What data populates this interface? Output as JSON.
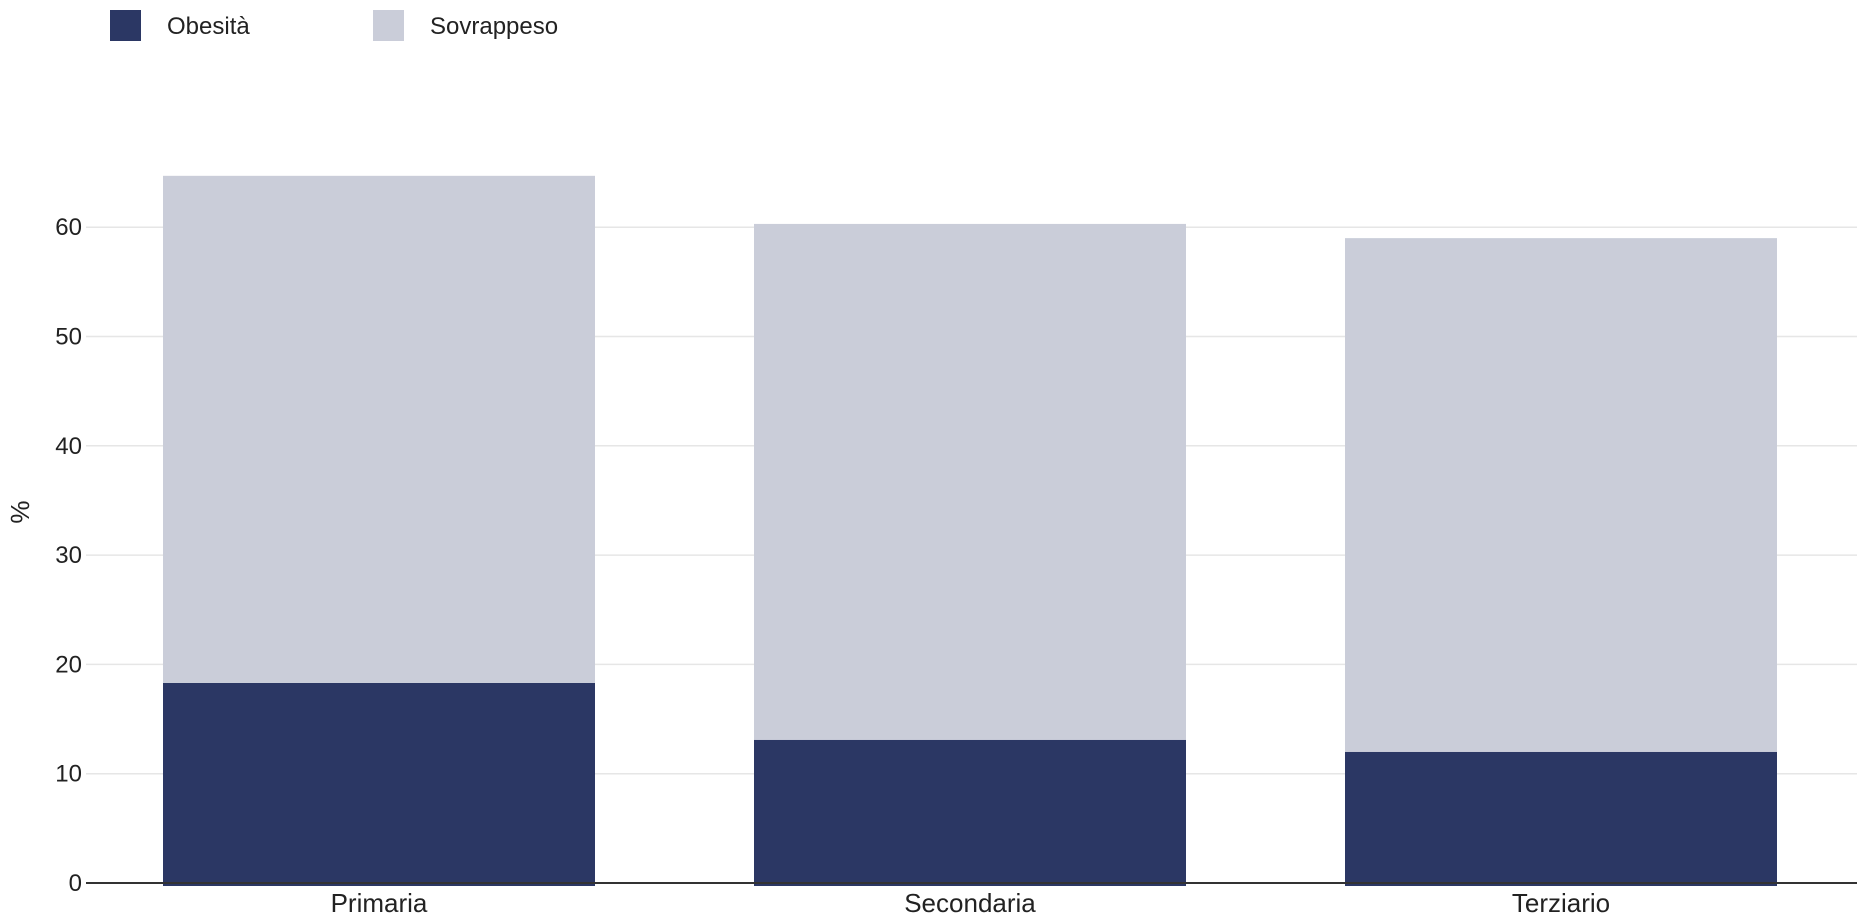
{
  "chart_data": {
    "type": "bar",
    "stacked": true,
    "categories": [
      "Primaria",
      "Secondaria",
      "Terziario"
    ],
    "series": [
      {
        "name": "Obesità",
        "values": [
          18.3,
          13.1,
          12.0
        ],
        "color": "#2b3764"
      },
      {
        "name": "Sovrappeso",
        "values": [
          46.4,
          47.2,
          47.0
        ],
        "color": "#cacdd9"
      }
    ],
    "xlabel": "",
    "ylabel": "%",
    "ylim": [
      0,
      70
    ],
    "yticks": [
      0,
      10,
      20,
      30,
      40,
      50,
      60
    ],
    "grid": true,
    "legend_position": "top-left"
  }
}
